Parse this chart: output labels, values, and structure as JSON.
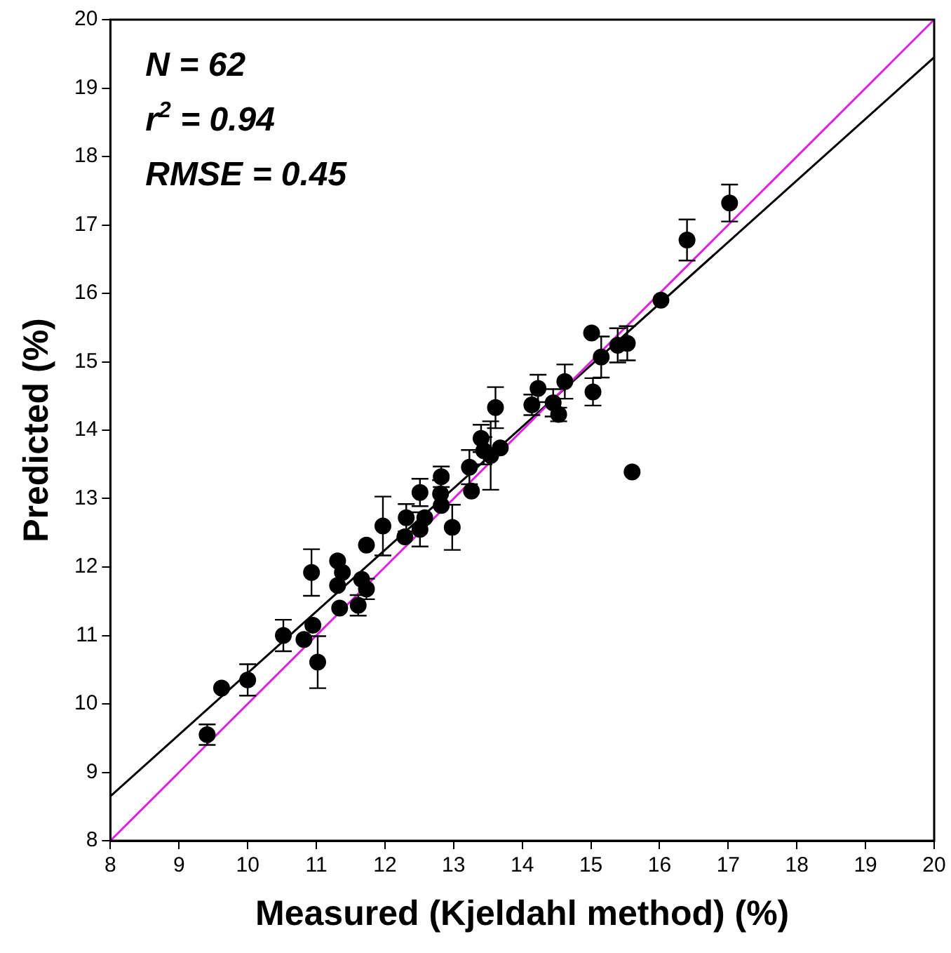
{
  "chart_data": {
    "type": "scatter",
    "xlabel": "Measured (Kjeldahl method) (%)",
    "ylabel": "Predicted (%)",
    "annotations": [
      "N = 62",
      "r$^{2}$ = 0.94",
      "RMSE = 0.45"
    ],
    "xlim": [
      8,
      20
    ],
    "ylim": [
      8,
      20
    ],
    "xticks": [
      8,
      9,
      10,
      11,
      12,
      13,
      14,
      15,
      16,
      17,
      18,
      19,
      20
    ],
    "yticks": [
      8,
      9,
      10,
      11,
      12,
      13,
      14,
      15,
      16,
      17,
      18,
      19,
      20
    ],
    "grid": false,
    "legend": false,
    "marker": "circle",
    "series": [
      {
        "type": "line",
        "color": "#e020e0",
        "x": [
          8,
          20
        ],
        "values": [
          8,
          20
        ],
        "marker": "none"
      },
      {
        "type": "line",
        "color": "#000000",
        "x": [
          8,
          20
        ],
        "values": [
          8.65,
          19.45
        ],
        "marker": "none"
      },
      {
        "type": "scatter",
        "color": "#000000",
        "x": [
          9.41,
          9.62,
          10.0,
          10.52,
          10.82,
          10.95,
          11.02,
          10.93,
          11.31,
          11.31,
          11.38,
          11.34,
          11.61,
          11.66,
          11.73,
          11.73,
          11.97,
          12.29,
          12.31,
          12.51,
          12.51,
          12.58,
          12.82,
          12.81,
          12.82,
          12.98,
          13.23,
          13.26,
          13.4,
          13.44,
          13.54,
          13.68,
          13.61,
          14.14,
          14.23,
          14.45,
          14.62,
          14.53,
          15.03,
          15.01,
          15.15,
          15.39,
          15.53,
          15.6,
          16.02,
          16.4,
          17.02
        ],
        "values": [
          9.55,
          10.23,
          10.35,
          11.0,
          10.94,
          11.15,
          10.61,
          11.92,
          12.09,
          11.73,
          11.92,
          11.4,
          11.44,
          11.82,
          11.68,
          12.32,
          12.6,
          12.44,
          12.72,
          13.09,
          12.55,
          12.72,
          13.32,
          13.07,
          12.9,
          12.58,
          13.46,
          13.11,
          13.88,
          13.7,
          13.63,
          13.74,
          14.33,
          14.37,
          14.61,
          14.4,
          14.71,
          14.23,
          14.56,
          15.42,
          15.07,
          15.24,
          15.27,
          13.39,
          15.9,
          16.78,
          17.32
        ],
        "errors": [
          0.15,
          null,
          0.23,
          0.23,
          null,
          null,
          0.38,
          0.34,
          null,
          null,
          null,
          null,
          0.15,
          null,
          0.15,
          null,
          0.43,
          null,
          0.2,
          0.2,
          0.25,
          null,
          0.15,
          0.2,
          null,
          0.33,
          0.25,
          null,
          0.2,
          0.2,
          0.5,
          null,
          0.3,
          0.15,
          0.2,
          0.2,
          0.25,
          0.1,
          0.2,
          null,
          0.3,
          0.25,
          0.25,
          null,
          null,
          0.3,
          0.27
        ]
      }
    ]
  }
}
